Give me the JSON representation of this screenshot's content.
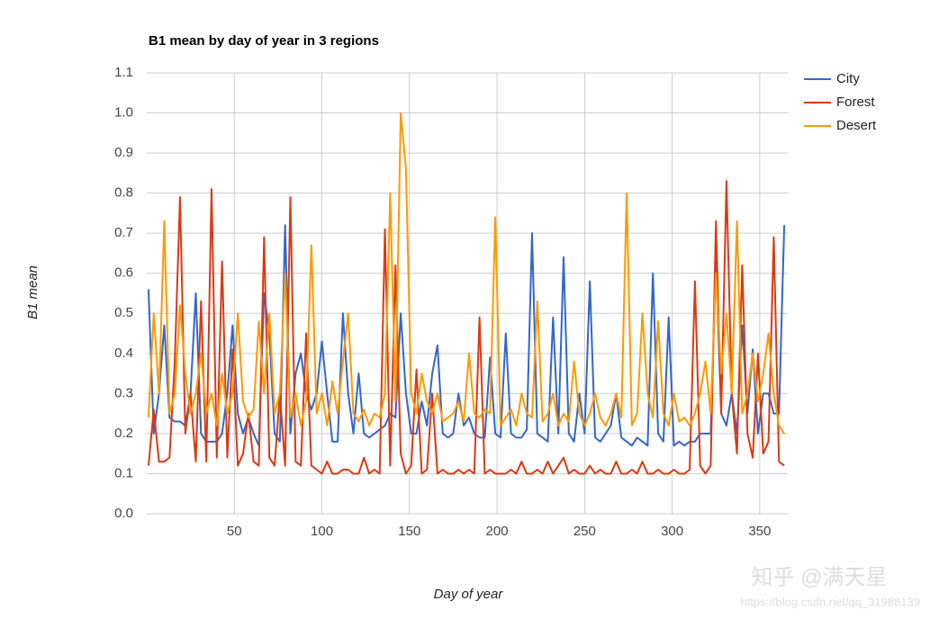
{
  "chart_data": {
    "type": "line",
    "title": "B1 mean by day of year in 3 regions",
    "x_label": "Day of year",
    "y_label": "B1 mean",
    "x": [
      1,
      4,
      7,
      10,
      13,
      16,
      19,
      22,
      25,
      28,
      31,
      34,
      37,
      40,
      43,
      46,
      49,
      52,
      55,
      58,
      61,
      64,
      67,
      70,
      73,
      76,
      79,
      82,
      85,
      88,
      91,
      94,
      97,
      100,
      103,
      106,
      109,
      112,
      115,
      118,
      121,
      124,
      127,
      130,
      133,
      136,
      139,
      142,
      145,
      148,
      151,
      154,
      157,
      160,
      163,
      166,
      169,
      172,
      175,
      178,
      181,
      184,
      187,
      190,
      193,
      196,
      199,
      202,
      205,
      208,
      211,
      214,
      217,
      220,
      223,
      226,
      229,
      232,
      235,
      238,
      241,
      244,
      247,
      250,
      253,
      256,
      259,
      262,
      265,
      268,
      271,
      274,
      277,
      280,
      283,
      286,
      289,
      292,
      295,
      298,
      301,
      304,
      307,
      310,
      313,
      316,
      319,
      322,
      325,
      328,
      331,
      334,
      337,
      340,
      343,
      346,
      349,
      352,
      355,
      358,
      361,
      364
    ],
    "series": [
      {
        "name": "City",
        "color": "#3366cc",
        "values": [
          0.56,
          0.2,
          0.3,
          0.47,
          0.24,
          0.23,
          0.23,
          0.22,
          0.3,
          0.55,
          0.2,
          0.18,
          0.18,
          0.18,
          0.2,
          0.3,
          0.47,
          0.25,
          0.2,
          0.24,
          0.2,
          0.17,
          0.55,
          0.45,
          0.2,
          0.18,
          0.72,
          0.2,
          0.35,
          0.4,
          0.3,
          0.26,
          0.3,
          0.43,
          0.3,
          0.18,
          0.18,
          0.5,
          0.3,
          0.2,
          0.35,
          0.2,
          0.19,
          0.2,
          0.21,
          0.22,
          0.25,
          0.24,
          0.5,
          0.3,
          0.2,
          0.2,
          0.28,
          0.22,
          0.35,
          0.42,
          0.2,
          0.19,
          0.2,
          0.3,
          0.22,
          0.24,
          0.2,
          0.19,
          0.19,
          0.39,
          0.2,
          0.19,
          0.45,
          0.2,
          0.19,
          0.19,
          0.21,
          0.7,
          0.2,
          0.19,
          0.18,
          0.49,
          0.2,
          0.64,
          0.2,
          0.18,
          0.3,
          0.2,
          0.58,
          0.19,
          0.18,
          0.2,
          0.22,
          0.3,
          0.19,
          0.18,
          0.17,
          0.19,
          0.18,
          0.17,
          0.6,
          0.2,
          0.18,
          0.49,
          0.17,
          0.18,
          0.17,
          0.18,
          0.18,
          0.2,
          0.2,
          0.2,
          0.63,
          0.25,
          0.22,
          0.3,
          0.2,
          0.47,
          0.25,
          0.41,
          0.2,
          0.3,
          0.3,
          0.25,
          0.25,
          0.72
        ]
      },
      {
        "name": "Forest",
        "color": "#dc3912",
        "values": [
          0.12,
          0.26,
          0.13,
          0.13,
          0.14,
          0.38,
          0.79,
          0.2,
          0.3,
          0.13,
          0.53,
          0.13,
          0.81,
          0.14,
          0.63,
          0.14,
          0.41,
          0.12,
          0.15,
          0.25,
          0.13,
          0.12,
          0.69,
          0.14,
          0.12,
          0.3,
          0.12,
          0.79,
          0.13,
          0.12,
          0.45,
          0.12,
          0.11,
          0.1,
          0.13,
          0.1,
          0.1,
          0.11,
          0.11,
          0.1,
          0.1,
          0.14,
          0.1,
          0.11,
          0.1,
          0.71,
          0.12,
          0.62,
          0.15,
          0.1,
          0.12,
          0.36,
          0.1,
          0.11,
          0.3,
          0.1,
          0.11,
          0.1,
          0.1,
          0.11,
          0.1,
          0.11,
          0.1,
          0.49,
          0.1,
          0.11,
          0.1,
          0.1,
          0.1,
          0.11,
          0.1,
          0.13,
          0.1,
          0.1,
          0.11,
          0.1,
          0.13,
          0.1,
          0.12,
          0.14,
          0.1,
          0.11,
          0.1,
          0.1,
          0.12,
          0.1,
          0.11,
          0.1,
          0.1,
          0.13,
          0.1,
          0.1,
          0.11,
          0.1,
          0.13,
          0.1,
          0.1,
          0.11,
          0.1,
          0.1,
          0.11,
          0.1,
          0.1,
          0.11,
          0.58,
          0.12,
          0.1,
          0.12,
          0.73,
          0.25,
          0.83,
          0.3,
          0.15,
          0.62,
          0.2,
          0.14,
          0.4,
          0.15,
          0.18,
          0.69,
          0.13,
          0.12
        ]
      },
      {
        "name": "Desert",
        "color": "#ff9900",
        "values": [
          0.24,
          0.5,
          0.3,
          0.73,
          0.25,
          0.3,
          0.52,
          0.35,
          0.25,
          0.3,
          0.4,
          0.25,
          0.3,
          0.22,
          0.35,
          0.25,
          0.3,
          0.5,
          0.28,
          0.24,
          0.26,
          0.48,
          0.3,
          0.5,
          0.25,
          0.3,
          0.6,
          0.24,
          0.3,
          0.22,
          0.28,
          0.67,
          0.25,
          0.3,
          0.22,
          0.33,
          0.25,
          0.38,
          0.5,
          0.25,
          0.23,
          0.26,
          0.22,
          0.25,
          0.24,
          0.3,
          0.8,
          0.28,
          1.0,
          0.86,
          0.3,
          0.25,
          0.35,
          0.28,
          0.25,
          0.3,
          0.23,
          0.24,
          0.25,
          0.28,
          0.23,
          0.4,
          0.25,
          0.24,
          0.26,
          0.25,
          0.74,
          0.22,
          0.24,
          0.26,
          0.22,
          0.3,
          0.25,
          0.24,
          0.53,
          0.23,
          0.25,
          0.3,
          0.22,
          0.25,
          0.23,
          0.38,
          0.25,
          0.22,
          0.25,
          0.3,
          0.24,
          0.22,
          0.25,
          0.3,
          0.24,
          0.8,
          0.22,
          0.25,
          0.5,
          0.3,
          0.24,
          0.48,
          0.25,
          0.22,
          0.3,
          0.23,
          0.24,
          0.22,
          0.25,
          0.3,
          0.38,
          0.25,
          0.6,
          0.35,
          0.5,
          0.3,
          0.73,
          0.25,
          0.3,
          0.4,
          0.28,
          0.35,
          0.45,
          0.3,
          0.22,
          0.2
        ]
      }
    ],
    "xlim": [
      0,
      366
    ],
    "xticks": [
      50,
      100,
      150,
      200,
      250,
      300,
      350
    ],
    "ylim": [
      0,
      1.1
    ],
    "yticks": [
      {
        "value": 0,
        "label": "0.0"
      },
      0.1,
      0.2,
      0.3,
      0.4,
      0.5,
      0.6,
      0.7,
      0.8,
      0.9,
      {
        "value": 1,
        "label": "1.0"
      },
      1.1
    ],
    "grid": true,
    "legend": "right"
  },
  "watermark": {
    "brand": "知乎 @满天星",
    "url": "https://blog.csdn.net/qq_31988139"
  }
}
